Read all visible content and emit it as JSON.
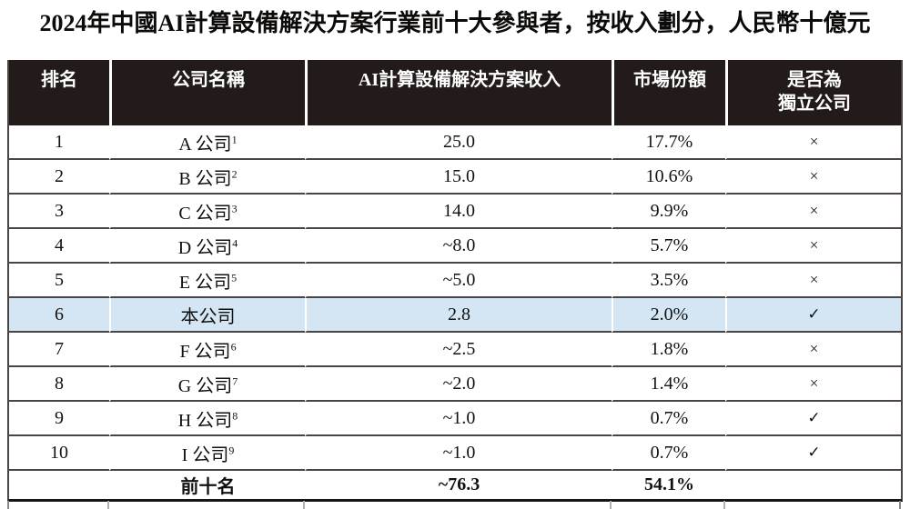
{
  "title": "2024年中國AI計算設備解決方案行業前十大參與者，按收入劃分，人民幣十億元",
  "colors": {
    "header_bg": "#221b1a",
    "header_text": "#ffffff",
    "highlight_row_bg": "#d4e6f3",
    "grid_line": "#4a4544",
    "body_text": "#111111"
  },
  "table": {
    "header": {
      "rank": "排名",
      "company": "公司名稱",
      "revenue": "AI計算設備解決方案收入",
      "share": "市場份額",
      "independent_line1": "是否為",
      "independent_line2": "獨立公司"
    },
    "rows": [
      {
        "rank": "1",
        "company": "A 公司",
        "footnote": "1",
        "revenue": "25.0",
        "share": "17.7%",
        "independent": "×"
      },
      {
        "rank": "2",
        "company": "B 公司",
        "footnote": "2",
        "revenue": "15.0",
        "share": "10.6%",
        "independent": "×"
      },
      {
        "rank": "3",
        "company": "C 公司",
        "footnote": "3",
        "revenue": "14.0",
        "share": "9.9%",
        "independent": "×"
      },
      {
        "rank": "4",
        "company": "D 公司",
        "footnote": "4",
        "revenue": "~8.0",
        "share": "5.7%",
        "independent": "×"
      },
      {
        "rank": "5",
        "company": "E 公司",
        "footnote": "5",
        "revenue": "~5.0",
        "share": "3.5%",
        "independent": "×"
      },
      {
        "rank": "6",
        "company": "本公司",
        "footnote": "",
        "revenue": "2.8",
        "share": "2.0%",
        "independent": "✓"
      },
      {
        "rank": "7",
        "company": "F 公司",
        "footnote": "6",
        "revenue": "~2.5",
        "share": "1.8%",
        "independent": "×"
      },
      {
        "rank": "8",
        "company": "G 公司",
        "footnote": "7",
        "revenue": "~2.0",
        "share": "1.4%",
        "independent": "×"
      },
      {
        "rank": "9",
        "company": "H 公司",
        "footnote": "8",
        "revenue": "~1.0",
        "share": "0.7%",
        "independent": "✓"
      },
      {
        "rank": "10",
        "company": "I 公司",
        "footnote": "9",
        "revenue": "~1.0",
        "share": "0.7%",
        "independent": "✓"
      }
    ],
    "footer": {
      "rank": "",
      "label": "前十名",
      "revenue": "~76.3",
      "share": "54.1%",
      "independent": ""
    }
  }
}
